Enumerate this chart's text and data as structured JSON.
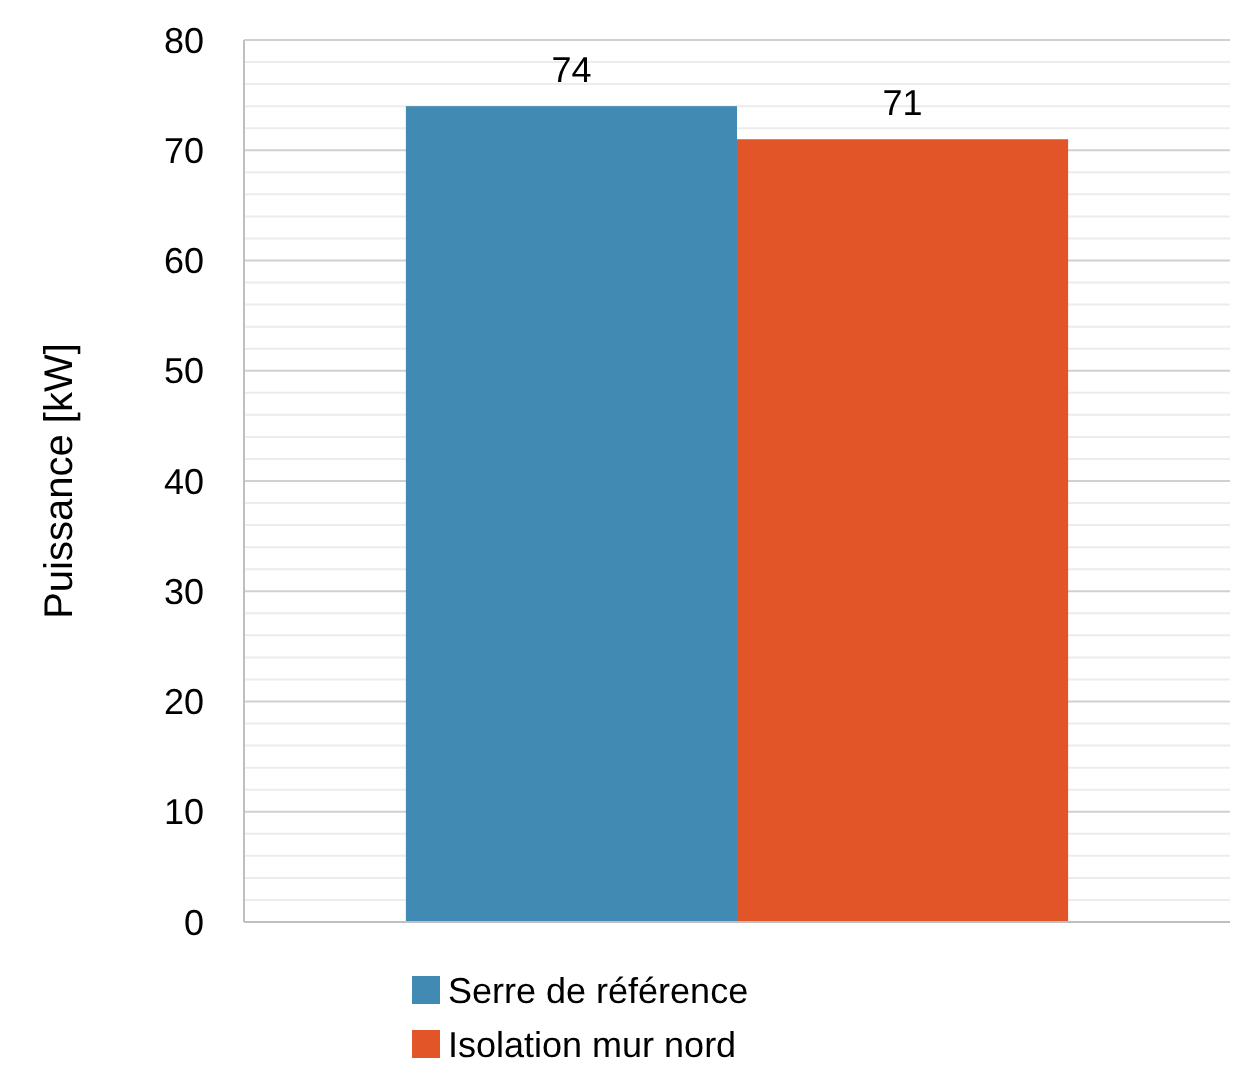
{
  "chart_data": {
    "type": "bar",
    "ylabel": "Puissance [kW]",
    "categories": [
      null
    ],
    "series": [
      {
        "name": "Serre de référence",
        "color": "#418ab3",
        "values": [
          74
        ]
      },
      {
        "name": "Isolation mur nord",
        "color": "#e15529",
        "values": [
          71
        ]
      }
    ],
    "ylim": [
      0,
      80
    ],
    "yticks": [
      0,
      {
        "value": 2,
        "label": null
      },
      {
        "value": 4,
        "label": null
      },
      {
        "value": 6,
        "label": null
      },
      {
        "value": 8,
        "label": null
      },
      10,
      {
        "value": 12,
        "label": null
      },
      {
        "value": 14,
        "label": null
      },
      {
        "value": 16,
        "label": null
      },
      {
        "value": 18,
        "label": null
      },
      20,
      {
        "value": 22,
        "label": null
      },
      {
        "value": 24,
        "label": null
      },
      {
        "value": 26,
        "label": null
      },
      {
        "value": 28,
        "label": null
      },
      30,
      {
        "value": 32,
        "label": null
      },
      {
        "value": 34,
        "label": null
      },
      {
        "value": 36,
        "label": null
      },
      {
        "value": 38,
        "label": null
      },
      40,
      {
        "value": 42,
        "label": null
      },
      {
        "value": 44,
        "label": null
      },
      {
        "value": 46,
        "label": null
      },
      {
        "value": 48,
        "label": null
      },
      50,
      {
        "value": 52,
        "label": null
      },
      {
        "value": 54,
        "label": null
      },
      {
        "value": 56,
        "label": null
      },
      {
        "value": 58,
        "label": null
      },
      60,
      {
        "value": 62,
        "label": null
      },
      {
        "value": 64,
        "label": null
      },
      {
        "value": 66,
        "label": null
      },
      {
        "value": 68,
        "label": null
      },
      70,
      {
        "value": 72,
        "label": null
      },
      {
        "value": 74,
        "label": null
      },
      {
        "value": 76,
        "label": null
      },
      {
        "value": 78,
        "label": null
      },
      80
    ],
    "grid": true,
    "legend": "bottom",
    "data_labels": true
  }
}
